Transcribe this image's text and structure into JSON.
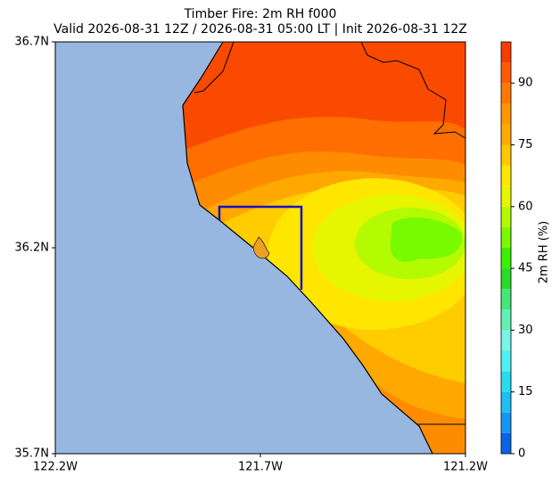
{
  "title": "Timber Fire: 2m RH f000",
  "subtitle": "Valid 2026-08-31 12Z / 2026-08-31 05:00 LT | Init 2026-08-31 12Z",
  "map": {
    "xlim": [
      -122.2,
      -121.2
    ],
    "ylim": [
      35.7,
      36.7
    ],
    "xticks": [
      {
        "value": -122.2,
        "label": "122.2W"
      },
      {
        "value": -121.7,
        "label": "121.7W"
      },
      {
        "value": -121.2,
        "label": "121.2W"
      }
    ],
    "yticks": [
      {
        "value": 35.7,
        "label": "35.7N"
      },
      {
        "value": 36.2,
        "label": "36.2N"
      },
      {
        "value": 36.7,
        "label": "36.7N"
      }
    ]
  },
  "colorbar": {
    "label": "2m RH (%)",
    "lim": [
      0,
      100
    ],
    "ticks": [
      0,
      15,
      30,
      45,
      60,
      75,
      90
    ],
    "levels": [
      0,
      5,
      10,
      15,
      20,
      25,
      30,
      35,
      40,
      45,
      50,
      55,
      60,
      65,
      70,
      75,
      80,
      85,
      90,
      95,
      100
    ],
    "colors": [
      "#0a64e6",
      "#1496f5",
      "#1ebef5",
      "#28dcf0",
      "#50f0f0",
      "#78f5e6",
      "#64f0b4",
      "#46e678",
      "#28dc28",
      "#3cf000",
      "#78fa00",
      "#b4fa00",
      "#e6f500",
      "#ffe600",
      "#ffc800",
      "#ffaa00",
      "#ff9600",
      "#ff7800",
      "#ff5a00",
      "#fa3c00"
    ]
  }
}
